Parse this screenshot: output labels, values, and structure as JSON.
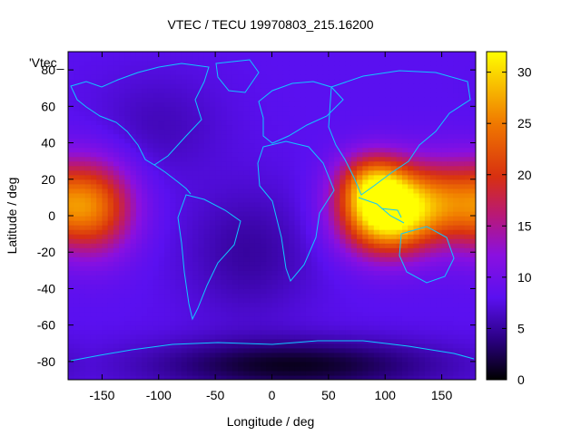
{
  "chart_data": {
    "type": "heatmap",
    "title": "VTEC / TECU 19970803_215.16200",
    "xlabel": "Longitude / deg",
    "ylabel": "Latitude / deg",
    "legend_key": "'Vtec_",
    "xlim": [
      -180,
      180
    ],
    "ylim": [
      -90,
      90
    ],
    "x_ticks": [
      -150,
      -100,
      -50,
      0,
      50,
      100,
      150
    ],
    "y_ticks": [
      -80,
      -60,
      -40,
      -20,
      0,
      20,
      40,
      60,
      80
    ],
    "colorbar": {
      "min": 0,
      "max": 32,
      "ticks": [
        0,
        5,
        10,
        15,
        20,
        25,
        30
      ],
      "palette": "black-blue-violet-red-yellow"
    },
    "grid": false,
    "background_level": 8,
    "anomalies": [
      {
        "name": "peak-indian-ocean",
        "lon": 100,
        "lat": 0,
        "peak": 31,
        "spread_lon": 28,
        "spread_lat": 15
      },
      {
        "name": "asia-north-lobe",
        "lon": 90,
        "lat": 18,
        "peak": 22,
        "spread_lon": 22,
        "spread_lat": 12
      },
      {
        "name": "west-pacific-lobe",
        "lon": 150,
        "lat": 8,
        "peak": 21,
        "spread_lon": 30,
        "spread_lat": 16
      },
      {
        "name": "east-pacific-lobe",
        "lon": -158,
        "lat": 5,
        "peak": 23,
        "spread_lon": 26,
        "spread_lat": 18
      },
      {
        "name": "south-atlantic-low",
        "lon": -20,
        "lat": -20,
        "peak": 5,
        "spread_lon": 40,
        "spread_lat": 25
      },
      {
        "name": "antarctic-low",
        "lon": 20,
        "lat": -82,
        "peak": 1,
        "spread_lon": 90,
        "spread_lat": 10
      },
      {
        "name": "north-america-low",
        "lon": -100,
        "lat": 50,
        "peak": 6,
        "spread_lon": 40,
        "spread_lat": 20
      }
    ]
  }
}
